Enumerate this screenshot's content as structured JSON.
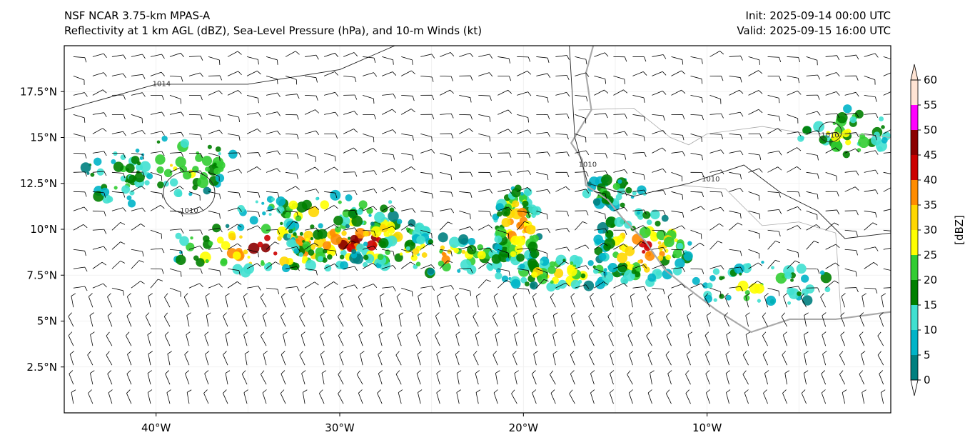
{
  "header": {
    "model": "NSF NCAR 3.75-km MPAS-A",
    "fields": "Reflectivity at 1 km AGL (dBZ), Sea-Level Pressure (hPa), and 10-m Winds (kt)",
    "init": "Init: 2025-09-14 00:00 UTC",
    "valid": "Valid: 2025-09-15 16:00 UTC"
  },
  "map": {
    "lon_range": [
      -45,
      0
    ],
    "lat_range": [
      0,
      20
    ],
    "lon_ticks": [
      {
        "value": -40,
        "label": "40°W"
      },
      {
        "value": -30,
        "label": "30°W"
      },
      {
        "value": -20,
        "label": "20°W"
      },
      {
        "value": -10,
        "label": "10°W"
      }
    ],
    "lat_ticks": [
      {
        "value": 2.5,
        "label": "2.5°N"
      },
      {
        "value": 5,
        "label": "5°N"
      },
      {
        "value": 7.5,
        "label": "7.5°N"
      },
      {
        "value": 10,
        "label": "10°N"
      },
      {
        "value": 12.5,
        "label": "12.5°N"
      },
      {
        "value": 15,
        "label": "15°N"
      },
      {
        "value": 17.5,
        "label": "17.5°N"
      }
    ],
    "grid": true,
    "isobar_labels": [
      {
        "label": "1014",
        "lon": -39.7,
        "lat": 17.8
      },
      {
        "label": "1010",
        "lon": -38.2,
        "lat": 10.9
      },
      {
        "label": "1010",
        "lon": -16.5,
        "lat": 13.4
      },
      {
        "label": "1010",
        "lon": -9.8,
        "lat": 12.6
      },
      {
        "label": "1010",
        "lon": -3.3,
        "lat": 15.0
      }
    ]
  },
  "colorbar": {
    "label": "[dBZ]",
    "levels": [
      "0",
      "5",
      "10",
      "15",
      "20",
      "25",
      "30",
      "35",
      "40",
      "45",
      "50",
      "55",
      "60"
    ],
    "colors": [
      "#008080",
      "#00b4c8",
      "#40e0d0",
      "#008000",
      "#32cd32",
      "#ffff00",
      "#ffd700",
      "#ff8c00",
      "#cc0000",
      "#8b0000",
      "#ff00ff",
      "#ffe4d4"
    ]
  }
}
